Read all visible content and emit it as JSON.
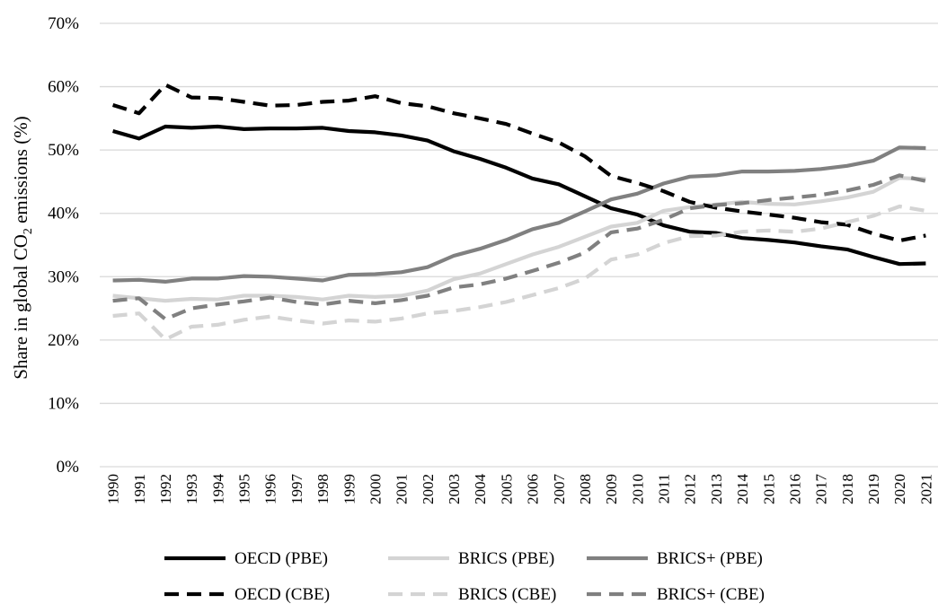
{
  "chart_data": {
    "type": "line",
    "title": "",
    "xlabel": "",
    "ylabel": {
      "prefix": "Share in global CO",
      "subscript": "2",
      "suffix": " emissions (%)"
    },
    "ylim": [
      0,
      70
    ],
    "yticks": [
      0,
      10,
      20,
      30,
      40,
      50,
      60,
      70
    ],
    "ytick_suffix": "%",
    "grid": true,
    "legend_position": "bottom",
    "x": [
      1990,
      1991,
      1992,
      1993,
      1994,
      1995,
      1996,
      1997,
      1998,
      1999,
      2000,
      2001,
      2002,
      2003,
      2004,
      2005,
      2006,
      2007,
      2008,
      2009,
      2010,
      2011,
      2012,
      2013,
      2014,
      2015,
      2016,
      2017,
      2018,
      2019,
      2020,
      2021
    ],
    "series": [
      {
        "name": "OECD (PBE)",
        "color": "#000000",
        "dash": "solid",
        "values": [
          53.0,
          51.8,
          53.7,
          53.5,
          53.7,
          53.3,
          53.4,
          53.4,
          53.5,
          53.0,
          52.8,
          52.3,
          51.5,
          49.8,
          48.6,
          47.2,
          45.5,
          44.6,
          42.7,
          40.8,
          39.8,
          38.1,
          37.1,
          36.9,
          36.1,
          35.8,
          35.4,
          34.8,
          34.3,
          33.1,
          32.0,
          32.1
        ]
      },
      {
        "name": "BRICS (PBE)",
        "color": "#d4d4d4",
        "dash": "solid",
        "values": [
          27.0,
          26.6,
          26.2,
          26.5,
          26.4,
          27.0,
          27.0,
          26.8,
          26.4,
          27.0,
          26.8,
          27.0,
          27.8,
          29.6,
          30.5,
          32.0,
          33.5,
          34.7,
          36.3,
          37.9,
          38.5,
          40.4,
          41.0,
          41.4,
          41.8,
          41.5,
          41.4,
          41.9,
          42.5,
          43.4,
          45.6,
          45.4
        ]
      },
      {
        "name": "BRICS+ (PBE)",
        "color": "#808080",
        "dash": "solid",
        "values": [
          29.4,
          29.5,
          29.2,
          29.7,
          29.7,
          30.1,
          30.0,
          29.7,
          29.4,
          30.3,
          30.4,
          30.7,
          31.5,
          33.3,
          34.4,
          35.8,
          37.5,
          38.5,
          40.3,
          42.2,
          43.1,
          44.7,
          45.8,
          46.0,
          46.6,
          46.6,
          46.7,
          47.0,
          47.5,
          48.3,
          50.4,
          50.3
        ]
      },
      {
        "name": "OECD (CBE)",
        "color": "#000000",
        "dash": "dashed",
        "values": [
          57.1,
          55.8,
          60.3,
          58.3,
          58.2,
          57.6,
          57.0,
          57.1,
          57.6,
          57.8,
          58.5,
          57.4,
          56.9,
          55.8,
          55.0,
          54.1,
          52.6,
          51.2,
          49.0,
          45.9,
          44.8,
          43.5,
          41.8,
          40.9,
          40.3,
          39.8,
          39.3,
          38.6,
          38.2,
          36.8,
          35.7,
          36.5
        ]
      },
      {
        "name": "BRICS (CBE)",
        "color": "#d4d4d4",
        "dash": "dashed",
        "values": [
          23.8,
          24.2,
          20.1,
          22.1,
          22.4,
          23.2,
          23.7,
          23.1,
          22.6,
          23.1,
          22.9,
          23.4,
          24.2,
          24.6,
          25.2,
          26.0,
          27.1,
          28.2,
          29.7,
          32.7,
          33.5,
          35.3,
          36.4,
          36.5,
          37.1,
          37.3,
          37.1,
          37.6,
          38.6,
          39.6,
          41.1,
          40.4
        ]
      },
      {
        "name": "BRICS+ (CBE)",
        "color": "#808080",
        "dash": "dashed",
        "values": [
          26.2,
          26.6,
          23.3,
          25.0,
          25.6,
          26.1,
          26.7,
          26.0,
          25.6,
          26.2,
          25.8,
          26.3,
          27.0,
          28.3,
          28.8,
          29.7,
          30.9,
          32.2,
          33.8,
          37.0,
          37.6,
          39.0,
          40.8,
          41.3,
          41.6,
          42.1,
          42.5,
          42.9,
          43.6,
          44.5,
          46.0,
          45.1
        ]
      }
    ]
  }
}
